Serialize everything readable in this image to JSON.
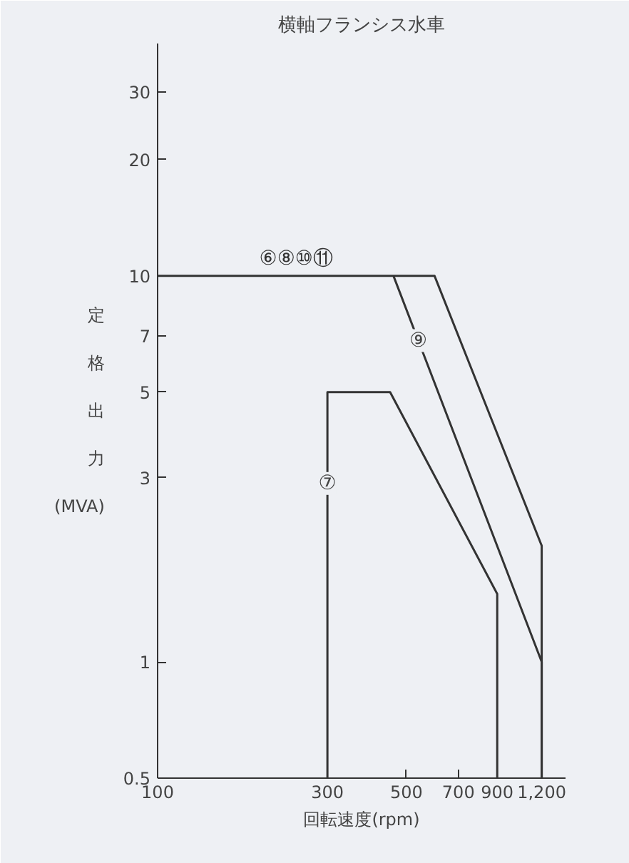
{
  "chart_data": {
    "type": "line",
    "title": "横軸フランシス水車",
    "xlabel": "回転速度(rpm)",
    "ylabel": "定格出力(MVA)",
    "log": "xy",
    "grid": false,
    "marker": "none",
    "line_style": "solid",
    "xlim": [
      100,
      1400
    ],
    "ylim": [
      0.5,
      40
    ],
    "xticks": [
      100,
      300,
      500,
      700,
      900,
      {
        "value": 1200,
        "label": "1,200"
      }
    ],
    "yticks": [
      0.5,
      1,
      3,
      5,
      7,
      10,
      20,
      30
    ],
    "series": [
      {
        "name": "⑥⑧⑩⑪",
        "color": "#333333",
        "x": [
          100,
          600,
          1200,
          1200
        ],
        "values": [
          10,
          10,
          2,
          0.5
        ]
      },
      {
        "color": "#333333",
        "x": [
          460,
          1200,
          1200
        ],
        "values": [
          10,
          1,
          0.5
        ]
      },
      {
        "color": "#333333",
        "x": [
          300,
          300,
          450,
          900,
          900
        ],
        "values": [
          0.5,
          5,
          5,
          1.5,
          0.5
        ]
      }
    ],
    "annotations": [
      {
        "text": "⑨",
        "x": 540,
        "y": 6.8
      },
      {
        "text": "⑦",
        "x": 300,
        "y": 2.9
      }
    ]
  }
}
